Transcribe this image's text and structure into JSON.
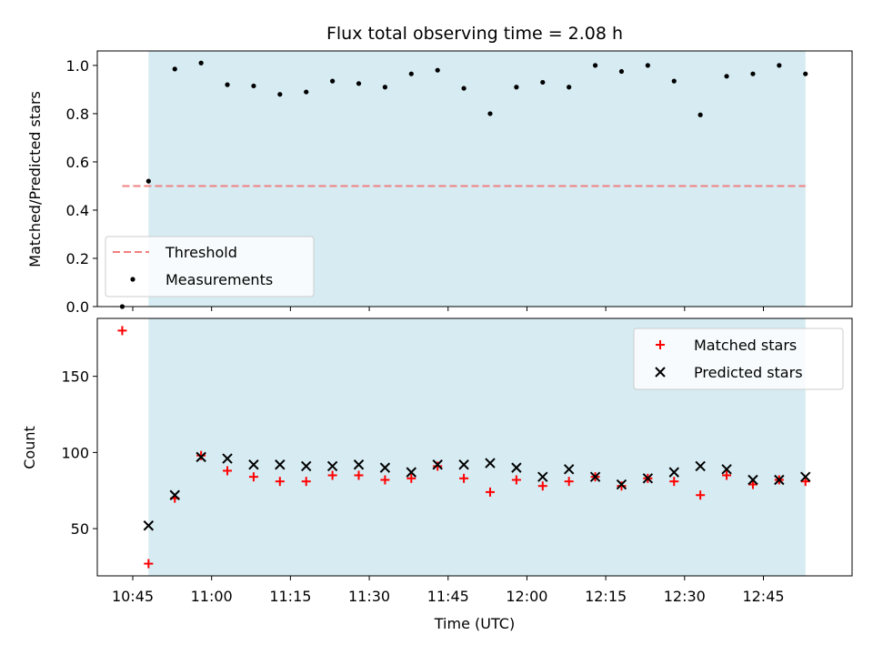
{
  "title": "Flux total observing time = 2.08 h",
  "xlabel": "Time (UTC)",
  "colors": {
    "span": "#add8e6",
    "threshold": "#f08080",
    "matched": "#ff0000",
    "predicted": "#000000",
    "measurement": "#000000"
  },
  "chart_data": [
    {
      "type": "scatter",
      "ylabel": "Matched/Predicted stars",
      "ylim": [
        0,
        1.06
      ],
      "yticks": [
        0.0,
        0.2,
        0.4,
        0.6,
        0.8,
        1.0
      ],
      "ytick_labels": [
        "0.0",
        "0.2",
        "0.4",
        "0.6",
        "0.8",
        "1.0"
      ],
      "shaded_span": [
        "10:48",
        "12:53"
      ],
      "threshold": {
        "name": "Threshold",
        "y": 0.5,
        "x_range": [
          "10:43",
          "12:53"
        ]
      },
      "legend": {
        "placement": "lower-left",
        "entries": [
          "Threshold",
          "Measurements"
        ]
      },
      "series": [
        {
          "name": "Measurements",
          "x": [
            "10:43",
            "10:48",
            "10:53",
            "10:58",
            "11:03",
            "11:08",
            "11:13",
            "11:18",
            "11:23",
            "11:28",
            "11:33",
            "11:38",
            "11:43",
            "11:48",
            "11:53",
            "11:58",
            "12:03",
            "12:08",
            "12:13",
            "12:18",
            "12:23",
            "12:28",
            "12:33",
            "12:38",
            "12:43",
            "12:48",
            "12:53"
          ],
          "y": [
            0.0,
            0.52,
            0.985,
            1.01,
            0.92,
            0.915,
            0.88,
            0.89,
            0.935,
            0.925,
            0.91,
            0.965,
            0.98,
            0.905,
            0.8,
            0.91,
            0.93,
            0.91,
            1.0,
            0.975,
            1.0,
            0.935,
            0.795,
            0.955,
            0.965,
            1.0,
            0.965
          ]
        }
      ]
    },
    {
      "type": "scatter",
      "ylabel": "Count",
      "ylim": [
        19,
        188
      ],
      "yticks": [
        50,
        100,
        150
      ],
      "ytick_labels": [
        "50",
        "100",
        "150"
      ],
      "shaded_span": [
        "10:48",
        "12:53"
      ],
      "legend": {
        "placement": "top-right",
        "entries": [
          "Matched stars",
          "Predicted stars"
        ]
      },
      "x_ticks": [
        "10:45",
        "11:00",
        "11:15",
        "11:30",
        "11:45",
        "12:00",
        "12:15",
        "12:30",
        "12:45"
      ],
      "series": [
        {
          "name": "Matched stars",
          "marker": "plus",
          "x": [
            "10:43",
            "10:48",
            "10:53",
            "10:58",
            "11:03",
            "11:08",
            "11:13",
            "11:18",
            "11:23",
            "11:28",
            "11:33",
            "11:38",
            "11:43",
            "11:48",
            "11:53",
            "11:58",
            "12:03",
            "12:08",
            "12:13",
            "12:18",
            "12:23",
            "12:28",
            "12:33",
            "12:38",
            "12:43",
            "12:48",
            "12:53"
          ],
          "y": [
            180,
            27,
            70,
            98,
            88,
            84,
            81,
            81,
            85,
            85,
            82,
            83,
            91,
            83,
            74,
            82,
            78,
            81,
            84,
            78,
            83,
            81,
            72,
            85,
            79,
            82,
            81
          ]
        },
        {
          "name": "Predicted stars",
          "marker": "x",
          "x": [
            "10:48",
            "10:53",
            "10:58",
            "11:03",
            "11:08",
            "11:13",
            "11:18",
            "11:23",
            "11:28",
            "11:33",
            "11:38",
            "11:43",
            "11:48",
            "11:53",
            "11:58",
            "12:03",
            "12:08",
            "12:13",
            "12:18",
            "12:23",
            "12:28",
            "12:33",
            "12:38",
            "12:43",
            "12:48",
            "12:53"
          ],
          "y": [
            52,
            72,
            97,
            96,
            92,
            92,
            91,
            91,
            92,
            90,
            87,
            92,
            92,
            93,
            90,
            84,
            89,
            84,
            79,
            83,
            87,
            91,
            89,
            82,
            82,
            84
          ]
        }
      ]
    }
  ]
}
